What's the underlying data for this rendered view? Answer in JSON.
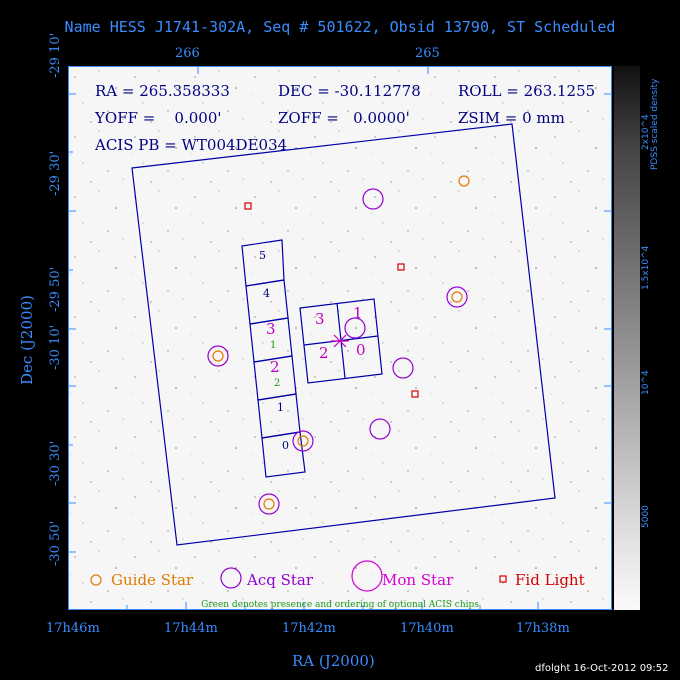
{
  "title": "Name HESS J1741-302A, Seq # 501622, Obsid 13790, ST Scheduled",
  "top_axis": {
    "ticks": [
      "266",
      "265"
    ]
  },
  "y_axis": {
    "label": "Dec (J2000)",
    "ticks": [
      "-29 10'",
      "-29 30'",
      "-29 50'",
      "-30 10'",
      "-30 30'",
      "-30 50'"
    ]
  },
  "x_axis": {
    "label": "RA (J2000)",
    "ticks": [
      "17h46m",
      "17h44m",
      "17h42m",
      "17h40m",
      "17h38m"
    ]
  },
  "info": {
    "ra": "RA = 265.358333",
    "dec": "DEC = -30.112778",
    "roll": "ROLL = 263.1255",
    "yoff": "YOFF =    0.000'",
    "zoff": "ZOFF =   0.0000'",
    "zsim": "ZSIM = 0 mm",
    "acis": "ACIS PB = WT004DE034"
  },
  "chips": {
    "acis_s": [
      "5",
      "4",
      "3",
      "2",
      "1",
      "0"
    ],
    "acis_s_green": [
      "1",
      "2"
    ],
    "acis_i": [
      "3",
      "1",
      "2",
      "0"
    ]
  },
  "legend": {
    "guide": "Guide Star",
    "acq": "Acq Star",
    "mon": "Mon Star",
    "fid": "Fid Light",
    "note": "Green denotes presence and ordering of optional ACIS chips"
  },
  "colorbar": {
    "label": "PDSS scaled density",
    "ticks": [
      "2x10^4",
      "1.5x10^4",
      "10^4",
      "5000"
    ]
  },
  "colors": {
    "guide": "#e07a00",
    "acq": "#9400d3",
    "mon": "#d400d4",
    "fid": "#d40000",
    "frame": "#0000aa",
    "axis": "#3a8cff",
    "optional": "#1a9a1a"
  },
  "stamp": "dfolght 16-Oct-2012 09:52"
}
